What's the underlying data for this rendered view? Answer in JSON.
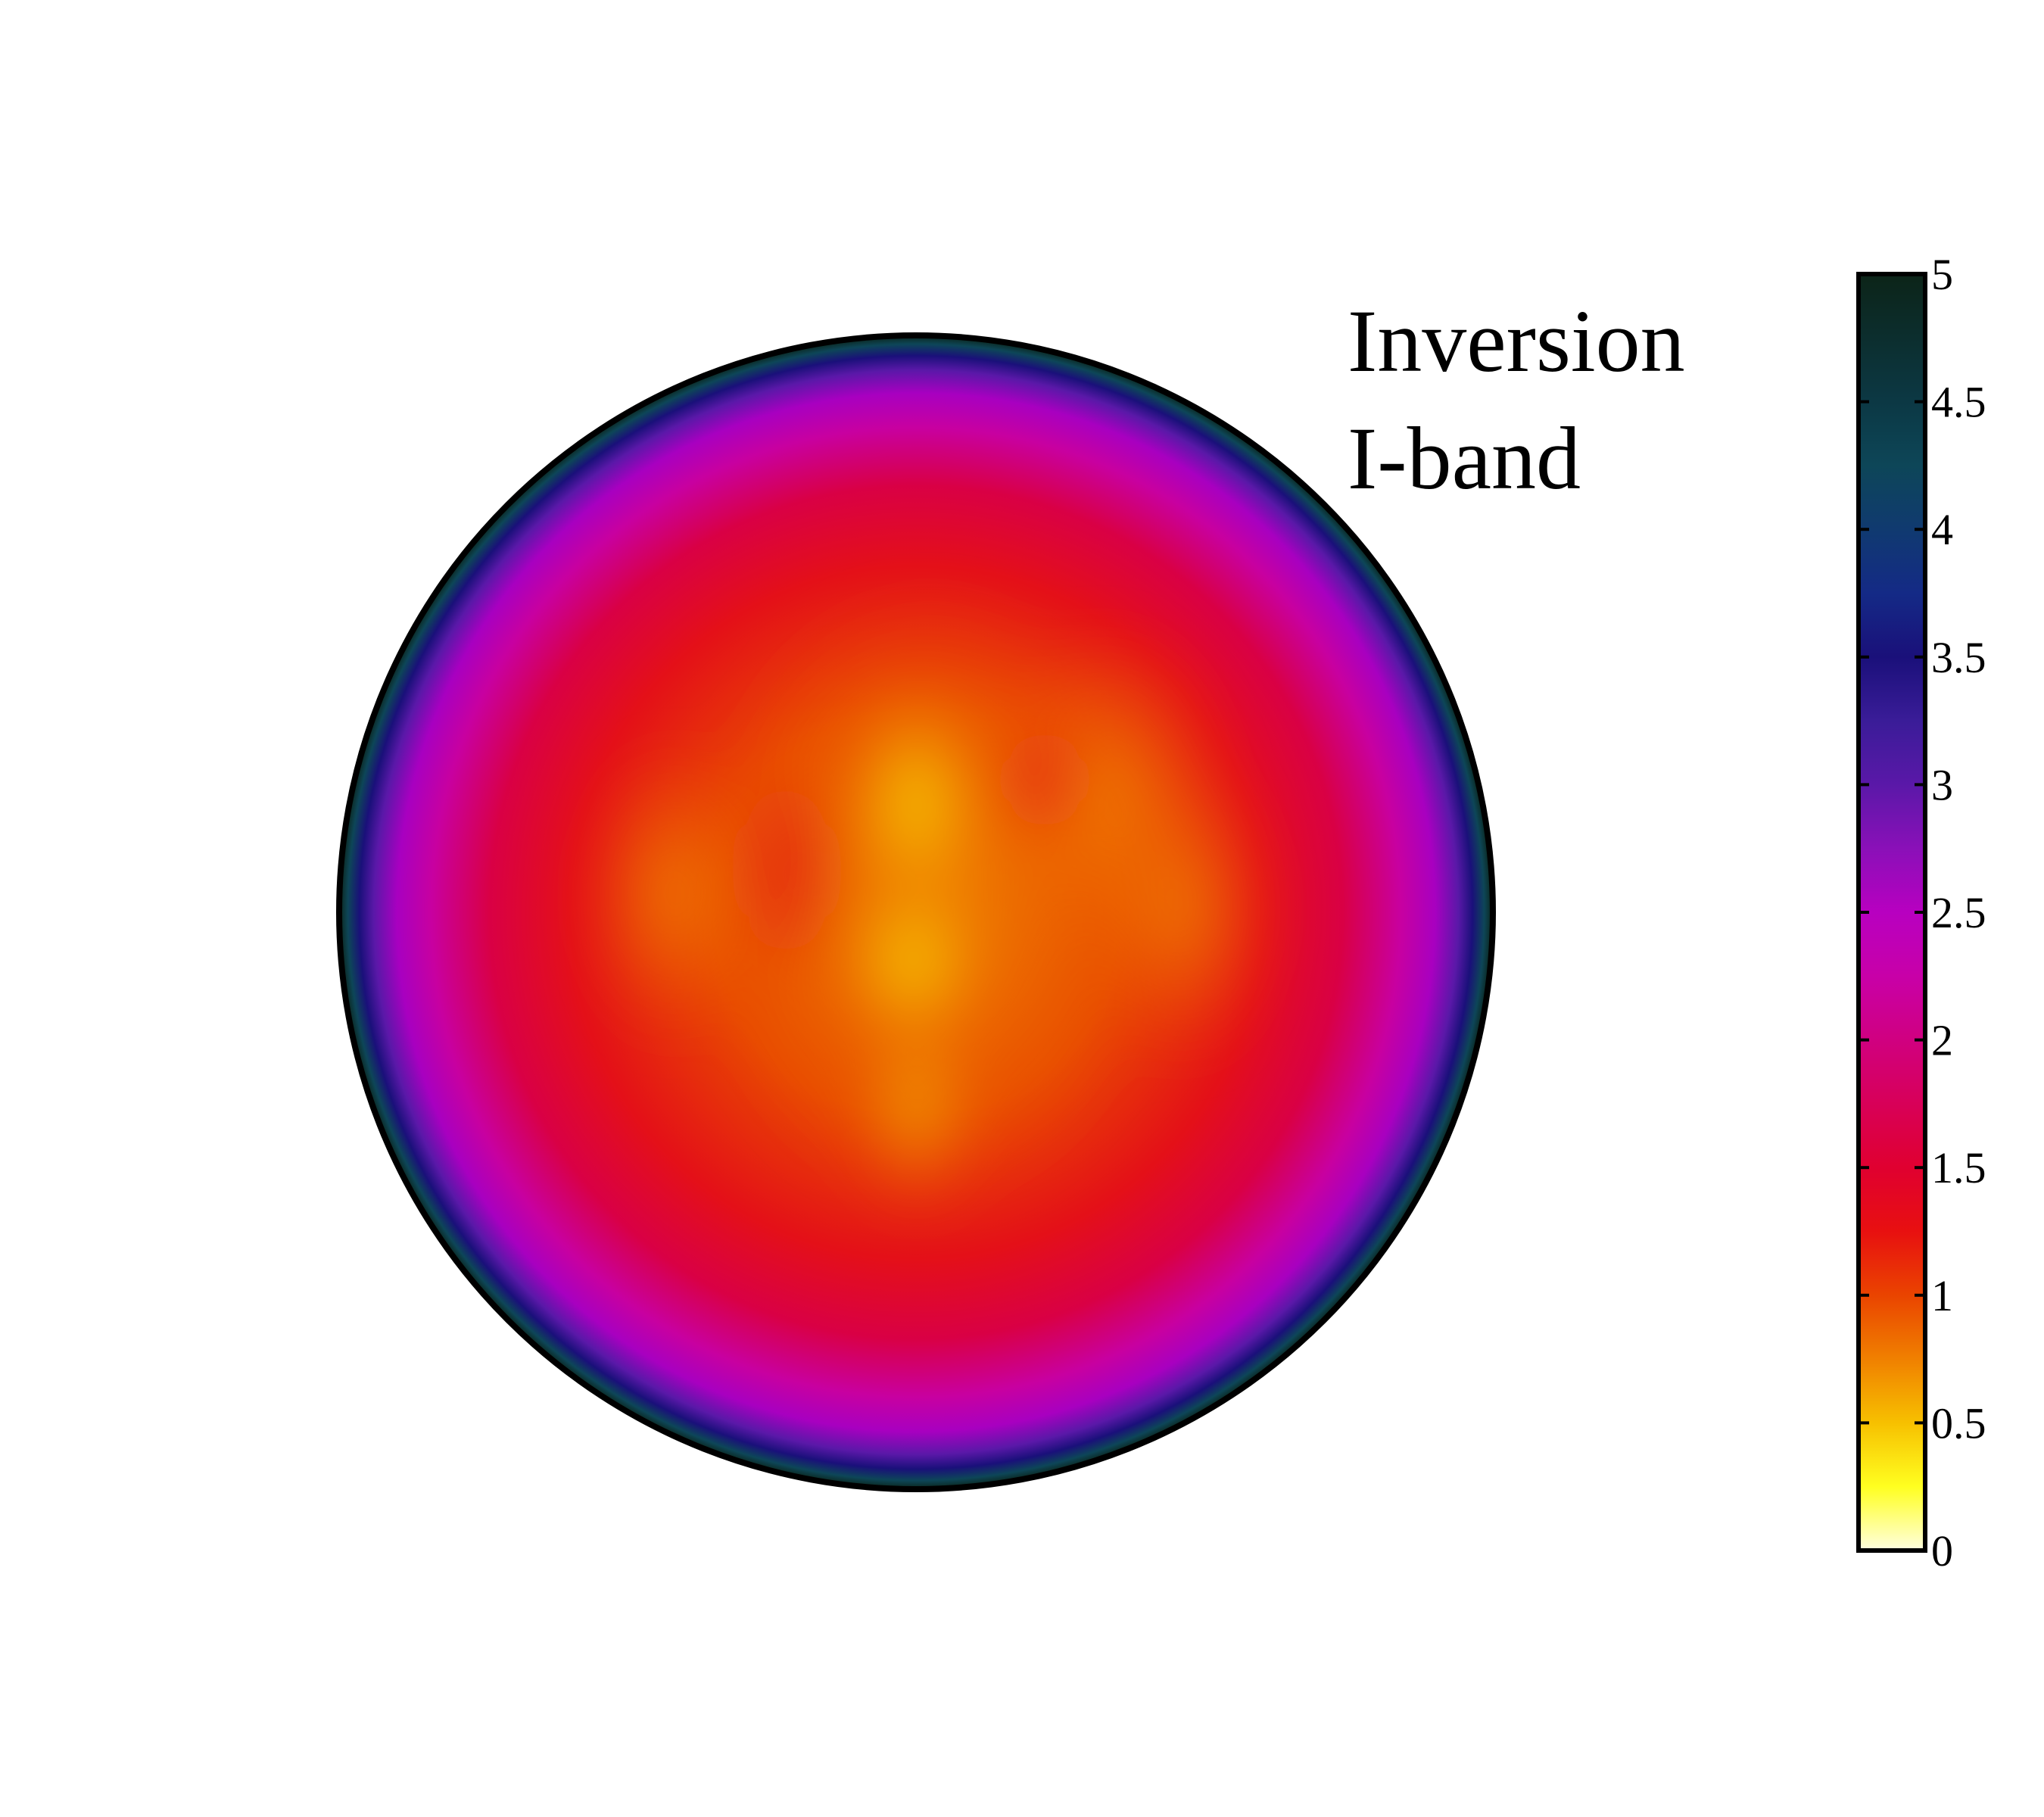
{
  "chart_data": {
    "type": "heatmap",
    "label_lines": [
      "Inversion",
      "I-band"
    ],
    "colorbar": {
      "min": 0,
      "max": 5,
      "ticks": [
        "0",
        "0.5",
        "1",
        "1.5",
        "2",
        "2.5",
        "3",
        "3.5",
        "4",
        "4.5",
        "5"
      ],
      "tick_values": [
        0,
        0.5,
        1,
        1.5,
        2,
        2.5,
        3,
        3.5,
        4,
        4.5,
        5
      ],
      "stops": [
        {
          "value": 0,
          "color": "#ffffe0"
        },
        {
          "value": 0.25,
          "color": "#ffff20"
        },
        {
          "value": 0.5,
          "color": "#f7c000"
        },
        {
          "value": 0.75,
          "color": "#f08000"
        },
        {
          "value": 1,
          "color": "#ea4400"
        },
        {
          "value": 1.25,
          "color": "#e81010"
        },
        {
          "value": 1.5,
          "color": "#e00030"
        },
        {
          "value": 1.75,
          "color": "#d80058"
        },
        {
          "value": 2,
          "color": "#d00080"
        },
        {
          "value": 2.25,
          "color": "#c800a8"
        },
        {
          "value": 2.5,
          "color": "#b800c0"
        },
        {
          "value": 2.75,
          "color": "#8a10b8"
        },
        {
          "value": 3,
          "color": "#5a18a8"
        },
        {
          "value": 3.25,
          "color": "#3a1c98"
        },
        {
          "value": 3.5,
          "color": "#1a107a"
        },
        {
          "value": 3.75,
          "color": "#142a86"
        },
        {
          "value": 4,
          "color": "#103a70"
        },
        {
          "value": 4.25,
          "color": "#0d4658"
        },
        {
          "value": 4.5,
          "color": "#0c3844"
        },
        {
          "value": 5,
          "color": "#0c2418"
        }
      ]
    },
    "disk_map": {
      "description_of_values": "approximate map values across the disk",
      "edge_value": 5,
      "background_value": 1.3,
      "features": [
        {
          "name": "central-ridge",
          "cx": 0.0,
          "cy": -0.08,
          "value": 0.35
        },
        {
          "name": "central-spot",
          "cx": 0.0,
          "cy": 0.08,
          "value": 0.3
        },
        {
          "name": "left-patch",
          "cx": -0.42,
          "cy": -0.05,
          "value": 1.0
        },
        {
          "name": "right-patch",
          "cx": 0.45,
          "cy": -0.15,
          "value": 0.9
        }
      ]
    }
  }
}
